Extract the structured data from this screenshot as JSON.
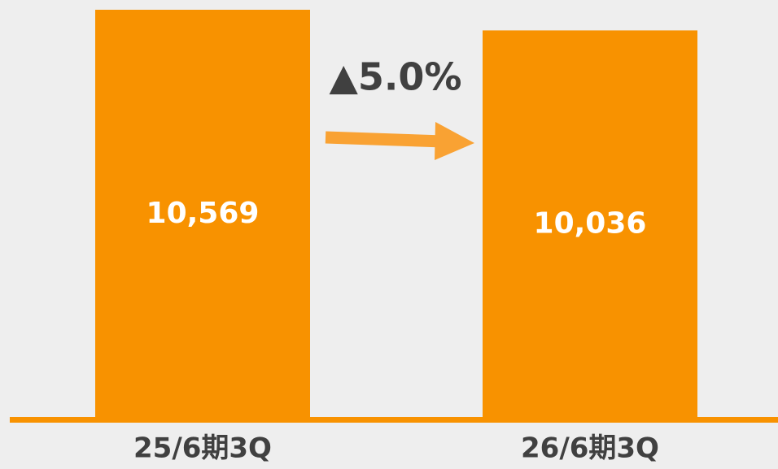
{
  "chart_data": {
    "type": "bar",
    "categories": [
      "25/6期3Q",
      "26/6期3Q"
    ],
    "values": [
      10569,
      10036
    ],
    "value_labels": [
      "10,569",
      "10,036"
    ],
    "color": "#f89200",
    "annotation": "▲5.0%"
  }
}
